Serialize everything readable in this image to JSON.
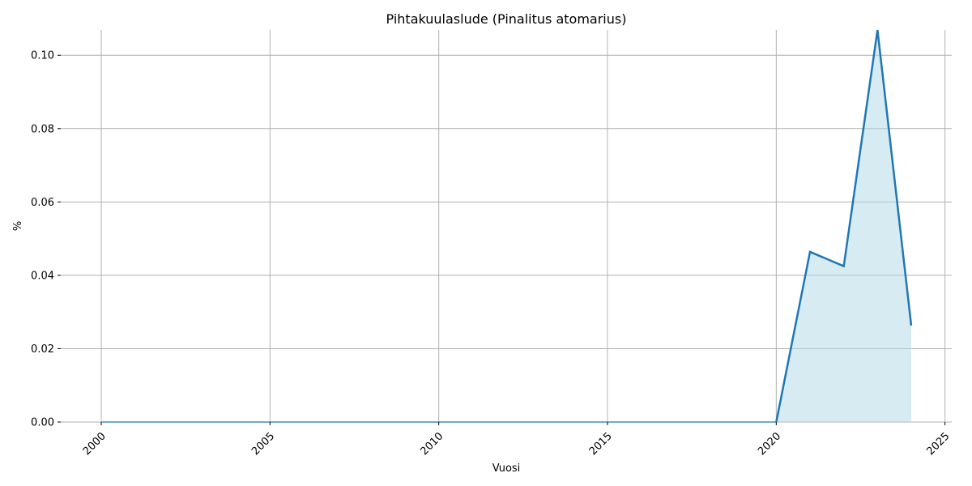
{
  "chart_data": {
    "type": "area",
    "title": "Pihtakuulaslude (Pinalitus atomarius)",
    "xlabel": "Vuosi",
    "ylabel": "%",
    "xlim": [
      1998.8,
      2025.2
    ],
    "ylim": [
      0,
      0.1069
    ],
    "grid": true,
    "x_ticks": [
      2000,
      2005,
      2010,
      2015,
      2020,
      2025
    ],
    "x_tick_labels": [
      "2000",
      "2005",
      "2010",
      "2015",
      "2020",
      "2025"
    ],
    "y_ticks": [
      0,
      0.02,
      0.04,
      0.06,
      0.08,
      0.1
    ],
    "y_tick_labels": [
      "0.00",
      "0.02",
      "0.04",
      "0.06",
      "0.08",
      "0.10"
    ],
    "series": [
      {
        "x": [
          2000,
          2001,
          2002,
          2003,
          2004,
          2005,
          2006,
          2007,
          2008,
          2009,
          2010,
          2011,
          2012,
          2013,
          2014,
          2015,
          2016,
          2017,
          2018,
          2019,
          2020,
          2021,
          2022,
          2023,
          2024
        ],
        "y": [
          0,
          0,
          0,
          0,
          0,
          0,
          0,
          0,
          0,
          0,
          0,
          0,
          0,
          0,
          0,
          0,
          0,
          0,
          0,
          0,
          0,
          0.0464,
          0.0425,
          0.1069,
          0.0263
        ]
      }
    ],
    "colors": {
      "line": "#1f77b4",
      "fill": "#add8e6",
      "grid": "#b0b0b0"
    }
  }
}
